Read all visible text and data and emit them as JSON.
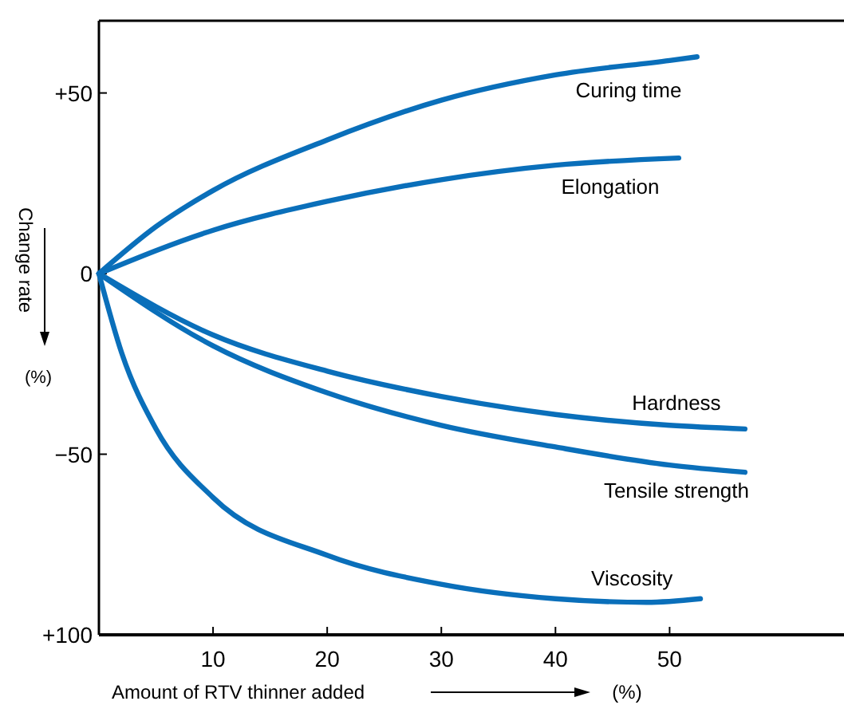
{
  "chart_data": {
    "type": "line",
    "xlabel": "Amount of RTV thinner added",
    "ylabel": "Change rate",
    "series": [
      {
        "name": "Curing time",
        "color": "#0a6fba",
        "x": [
          0,
          5,
          10,
          20,
          30,
          40,
          50,
          52.4
        ],
        "values": [
          0,
          13,
          23,
          37,
          48,
          55,
          59,
          60
        ]
      },
      {
        "name": "Elongation",
        "color": "#0a6fba",
        "x": [
          0,
          10,
          20,
          30,
          40,
          50.8
        ],
        "values": [
          0,
          12,
          20,
          26,
          30,
          32
        ]
      },
      {
        "name": "Hardness",
        "color": "#0a6fba",
        "x": [
          0,
          10,
          20,
          30,
          40,
          50,
          56.6
        ],
        "values": [
          0,
          -17,
          -27,
          -34,
          -39,
          -42,
          -43
        ]
      },
      {
        "name": "Tensile strength",
        "color": "#0a6fba",
        "x": [
          0,
          10,
          20,
          30,
          40,
          50,
          56.6
        ],
        "values": [
          0,
          -20,
          -33,
          -42,
          -48,
          -53,
          -55
        ]
      },
      {
        "name": "Viscosity",
        "color": "#0a6fba",
        "x": [
          0,
          2,
          5,
          10,
          20,
          30,
          40,
          48,
          52.7
        ],
        "values": [
          0,
          -22,
          -43,
          -62,
          -78,
          -86,
          -90,
          -91,
          -90
        ]
      }
    ],
    "xlim": [
      0,
      65
    ],
    "ylim": [
      -100,
      70
    ],
    "xticks": [
      10,
      20,
      30,
      40,
      50
    ],
    "yticks": [
      {
        "value": 50,
        "label": "+50"
      },
      0,
      {
        "value": -50,
        "label": "−50"
      },
      {
        "value": -100,
        "label": "+100"
      }
    ],
    "annotations": [
      "(%)",
      "(%)"
    ],
    "marker": "none",
    "line_style": "solid",
    "grid": false
  }
}
